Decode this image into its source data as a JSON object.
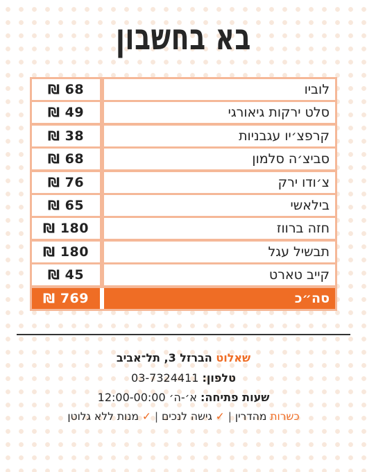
{
  "title": "בא בחשבון",
  "bill": {
    "items": [
      {
        "name": "לוביו",
        "price": "68 ₪"
      },
      {
        "name": "סלט ירקות גיאורגי",
        "price": "49 ₪"
      },
      {
        "name": "קרפצ׳יו עגבניות",
        "price": "38 ₪"
      },
      {
        "name": "סביצ׳ה סלמון",
        "price": "68 ₪"
      },
      {
        "name": "צ׳ודו ירק",
        "price": "76 ₪"
      },
      {
        "name": "בילאשי",
        "price": "65 ₪"
      },
      {
        "name": "חזה ברווז",
        "price": "180 ₪"
      },
      {
        "name": "תבשיל עגל",
        "price": "180 ₪"
      },
      {
        "name": "קייב טארט",
        "price": "45 ₪"
      }
    ],
    "total_label": "סה״כ",
    "total_price": "769 ₪"
  },
  "restaurant": {
    "name": "שאלוט",
    "address": " הברזל 3, תל־אביב",
    "phone_label": "טלפון:",
    "phone": " 03-7324411",
    "hours_label": "שעות פתיחה:",
    "hours": " א׳-ה׳ 12:00-00:00"
  },
  "features": {
    "kosher_label": "כשרות",
    "kosher_value": " מהדרין",
    "sep": " | ",
    "check": "✓",
    "accessibility": " גישה לנכים",
    "gluten_free": " מנות ללא גלוטן"
  },
  "colors": {
    "accent": "#ef6d25",
    "table_border": "#f5b898",
    "dots": "#f8e8dc"
  }
}
